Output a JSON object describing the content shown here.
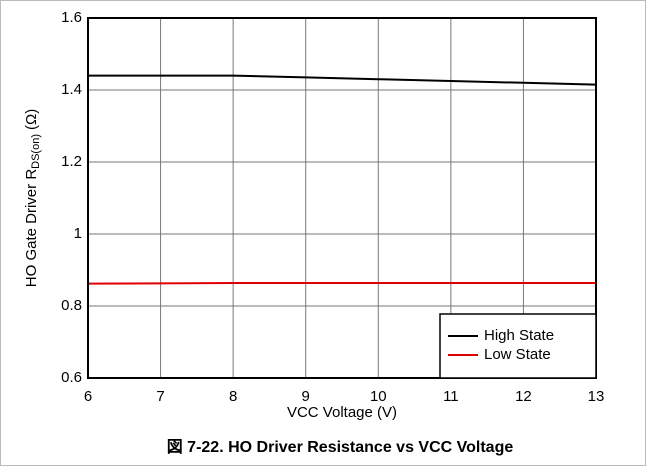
{
  "chart_data": {
    "type": "line",
    "title": "図 7-22. HO Driver Resistance vs VCC Voltage",
    "xlabel": "VCC Voltage (V)",
    "ylabel": {
      "text": "HO Gate Driver R",
      "subscript": "DS(on)",
      "suffix": "(Ω)"
    },
    "x": [
      6,
      7,
      8,
      9,
      10,
      11,
      12,
      13
    ],
    "series": [
      {
        "name": "High State",
        "color": "#000000",
        "values": [
          1.44,
          1.44,
          1.44,
          1.435,
          1.43,
          1.425,
          1.42,
          1.415
        ]
      },
      {
        "name": "Low State",
        "color": "#e00000",
        "values": [
          0.862,
          0.863,
          0.864,
          0.864,
          0.864,
          0.864,
          0.864,
          0.864
        ]
      }
    ],
    "xlim": [
      6,
      13
    ],
    "xticks": [
      6,
      7,
      8,
      9,
      10,
      11,
      12,
      13
    ],
    "ylim": [
      0.6,
      1.6
    ],
    "yticks": [
      0.6,
      0.8,
      1,
      1.2,
      1.4,
      1.6
    ],
    "grid": true,
    "legend": "lower right"
  }
}
